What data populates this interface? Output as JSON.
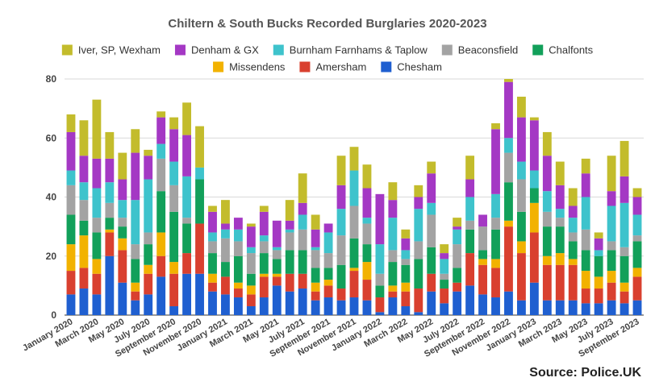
{
  "source_text": "Source: Police.UK",
  "chart_data": {
    "type": "bar",
    "stacked": true,
    "title": "Chiltern & South Bucks Recorded Burglaries 2020-2023",
    "xlabel": "",
    "ylabel": "",
    "ylim": [
      0,
      80
    ],
    "yticks": [
      0,
      20,
      40,
      60,
      80
    ],
    "grid": true,
    "legend_position": "top",
    "categories": [
      "January 2020",
      "February 2020",
      "March 2020",
      "April 2020",
      "May 2020",
      "June 2020",
      "July 2020",
      "August 2020",
      "September 2020",
      "October 2020",
      "November 2020",
      "December 2020",
      "January 2021",
      "February 2021",
      "March 2021",
      "April 2021",
      "May 2021",
      "June 2021",
      "July 2021",
      "August 2021",
      "September 2021",
      "October 2021",
      "November 2021",
      "December 2021",
      "January 2022",
      "February 2022",
      "March 2022",
      "April 2022",
      "May 2022",
      "June 2022",
      "July 2022",
      "August 2022",
      "September 2022",
      "October 2022",
      "November 2022",
      "December 2022",
      "January 2023",
      "February 2023",
      "March 2023",
      "April 2023",
      "May 2023",
      "June 2023",
      "July 2023",
      "August 2023",
      "September 2023"
    ],
    "tick_labels": [
      "January 2020",
      "March 2020",
      "May 2020",
      "July 2020",
      "September 2020",
      "November 2020",
      "January 2021",
      "March 2021",
      "May 2021",
      "July 2021",
      "September 2021",
      "November 2021",
      "January 2022",
      "March 2022",
      "May 2022",
      "July 2022",
      "September 2022",
      "November 2022",
      "January 2023",
      "March 2023",
      "May 2023",
      "July 2023",
      "September 2023"
    ],
    "series": [
      {
        "name": "Chesham",
        "color": "#1f5fd0",
        "values": [
          7,
          9,
          7,
          20,
          11,
          5,
          7,
          13,
          3,
          14,
          14,
          8,
          7,
          6,
          3,
          6,
          10,
          8,
          9,
          5,
          6,
          5,
          6,
          5,
          1,
          6,
          3,
          1,
          8,
          4,
          8,
          10,
          7,
          6,
          8,
          5,
          11,
          5,
          5,
          5,
          4,
          4,
          5,
          4,
          5
        ]
      },
      {
        "name": "Amersham",
        "color": "#d9402f",
        "values": [
          8,
          7,
          7,
          8,
          11,
          3,
          7,
          7,
          11,
          7,
          17,
          3,
          6,
          3,
          4,
          7,
          3,
          6,
          5,
          3,
          4,
          4,
          9,
          7,
          5,
          2,
          5,
          8,
          6,
          5,
          3,
          11,
          10,
          10,
          22,
          16,
          17,
          12,
          12,
          12,
          5,
          5,
          6,
          4,
          8
        ]
      },
      {
        "name": "Missendens",
        "color": "#f2b200",
        "values": [
          9,
          11,
          5,
          1,
          4,
          3,
          3,
          8,
          4,
          0,
          0,
          3,
          0,
          2,
          3,
          1,
          1,
          0,
          0,
          3,
          2,
          0,
          1,
          6,
          0,
          2,
          3,
          0,
          0,
          0,
          0,
          0,
          2,
          3,
          2,
          4,
          10,
          3,
          4,
          2,
          6,
          4,
          4,
          3,
          3
        ]
      },
      {
        "name": "Chalfonts",
        "color": "#12a05a",
        "values": [
          10,
          5,
          9,
          4,
          4,
          8,
          7,
          14,
          17,
          10,
          15,
          7,
          5,
          9,
          4,
          7,
          5,
          8,
          8,
          5,
          4,
          8,
          10,
          6,
          4,
          8,
          6,
          10,
          9,
          3,
          5,
          8,
          3,
          10,
          13,
          10,
          5,
          10,
          9,
          6,
          7,
          7,
          7,
          9,
          9
        ]
      },
      {
        "name": "Beaconsfield",
        "color": "#a3a3a3",
        "values": [
          10,
          7,
          5,
          5,
          3,
          5,
          4,
          11,
          9,
          2,
          0,
          4,
          8,
          5,
          7,
          4,
          3,
          6,
          7,
          6,
          5,
          10,
          11,
          7,
          4,
          4,
          2,
          6,
          11,
          2,
          8,
          3,
          8,
          4,
          10,
          11,
          0,
          5,
          3,
          3,
          7,
          0,
          3,
          3,
          2
        ]
      },
      {
        "name": "Burnham Farnhams & Taplow",
        "color": "#3ec3cc",
        "values": [
          5,
          6,
          10,
          7,
          6,
          15,
          18,
          5,
          8,
          14,
          4,
          3,
          3,
          4,
          2,
          2,
          1,
          1,
          5,
          1,
          7,
          9,
          12,
          2,
          10,
          11,
          3,
          11,
          4,
          5,
          5,
          8,
          0,
          8,
          5,
          6,
          6,
          7,
          3,
          5,
          11,
          2,
          12,
          15,
          7
        ]
      },
      {
        "name": "Denham & GX",
        "color": "#a438c4",
        "values": [
          13,
          9,
          10,
          8,
          7,
          16,
          8,
          9,
          11,
          14,
          0,
          7,
          2,
          4,
          7,
          8,
          9,
          3,
          4,
          6,
          3,
          8,
          0,
          10,
          17,
          6,
          4,
          4,
          10,
          2,
          1,
          6,
          4,
          22,
          19,
          15,
          17,
          12,
          8,
          4,
          8,
          4,
          5,
          9,
          6
        ]
      },
      {
        "name": "Iver, SP, Wexham",
        "color": "#c3bc2c",
        "values": [
          6,
          12,
          20,
          9,
          9,
          8,
          2,
          2,
          4,
          11,
          14,
          2,
          8,
          0,
          1,
          2,
          0,
          7,
          10,
          5,
          0,
          10,
          8,
          8,
          0,
          6,
          3,
          4,
          4,
          3,
          3,
          8,
          0,
          2,
          1,
          7,
          1,
          8,
          8,
          6,
          5,
          2,
          12,
          12,
          3
        ]
      }
    ]
  }
}
